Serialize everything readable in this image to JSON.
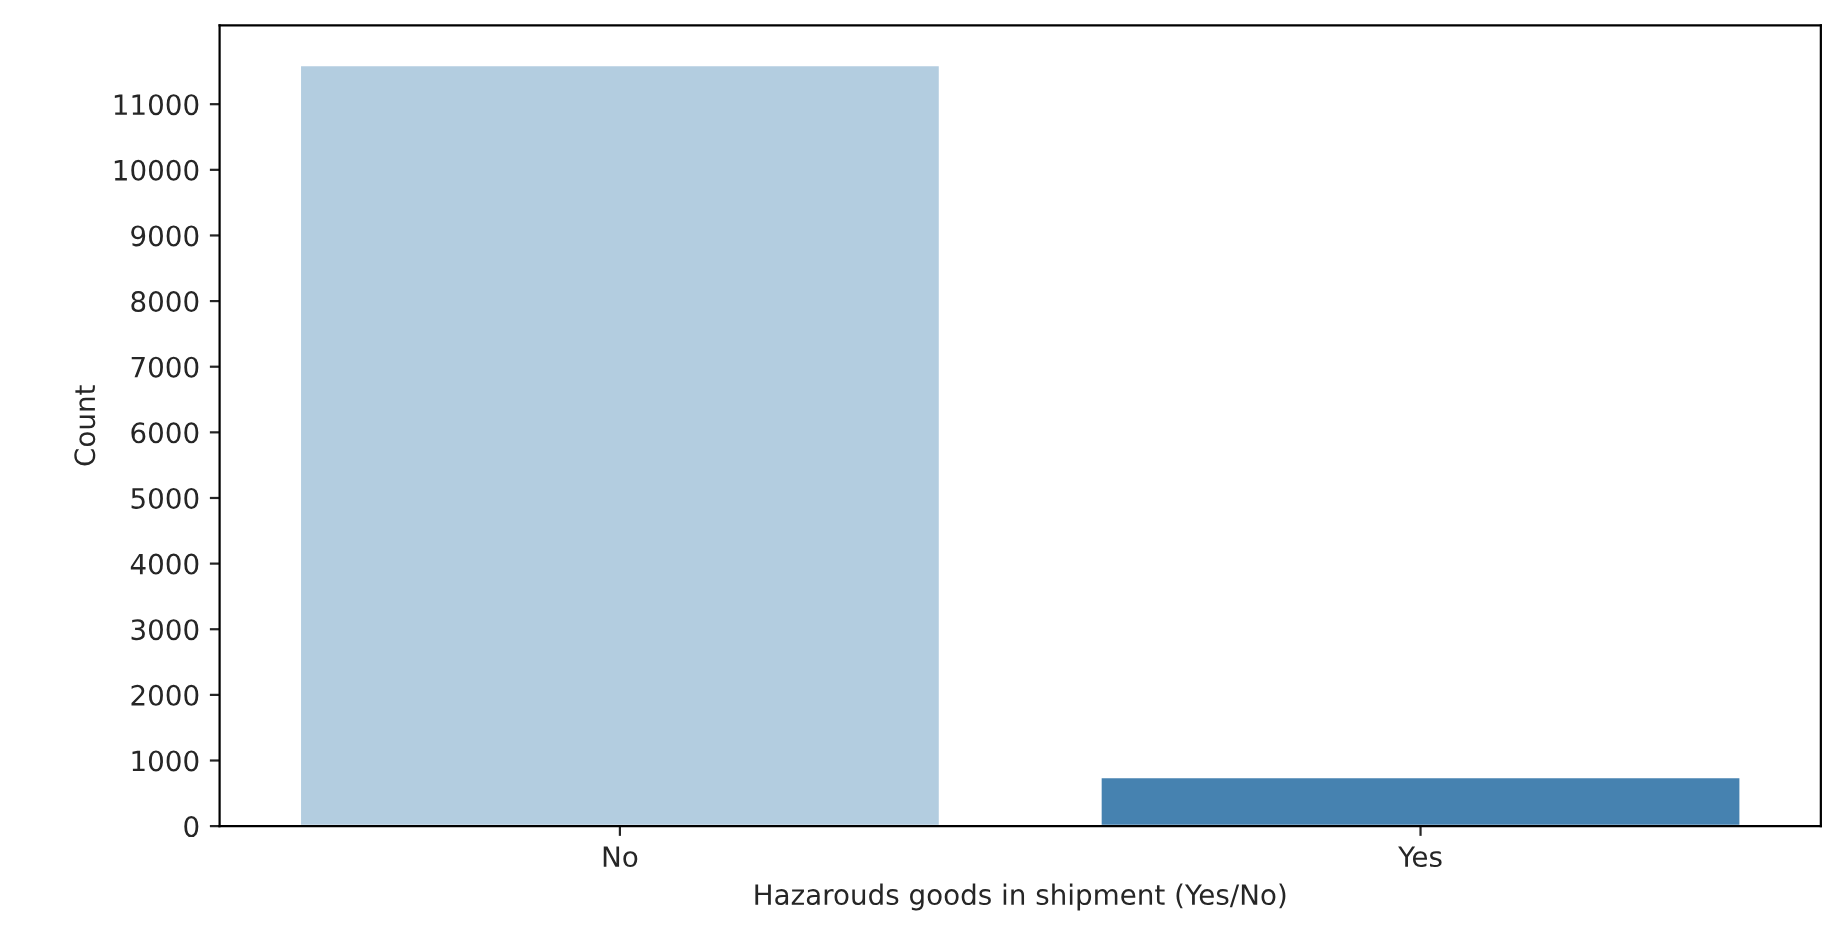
{
  "chart_data": {
    "type": "bar",
    "xlabel": "Hazarouds goods in shipment (Yes/No)",
    "ylabel": "Count",
    "categories": [
      "No",
      "Yes"
    ],
    "values": [
      11600,
      750
    ],
    "colors": [
      "#b3cde0",
      "#4682b0"
    ],
    "ylim": [
      0,
      12200
    ],
    "yticks": [
      0,
      1000,
      2000,
      3000,
      4000,
      5000,
      6000,
      7000,
      8000,
      9000,
      10000,
      11000
    ],
    "grid": false
  }
}
